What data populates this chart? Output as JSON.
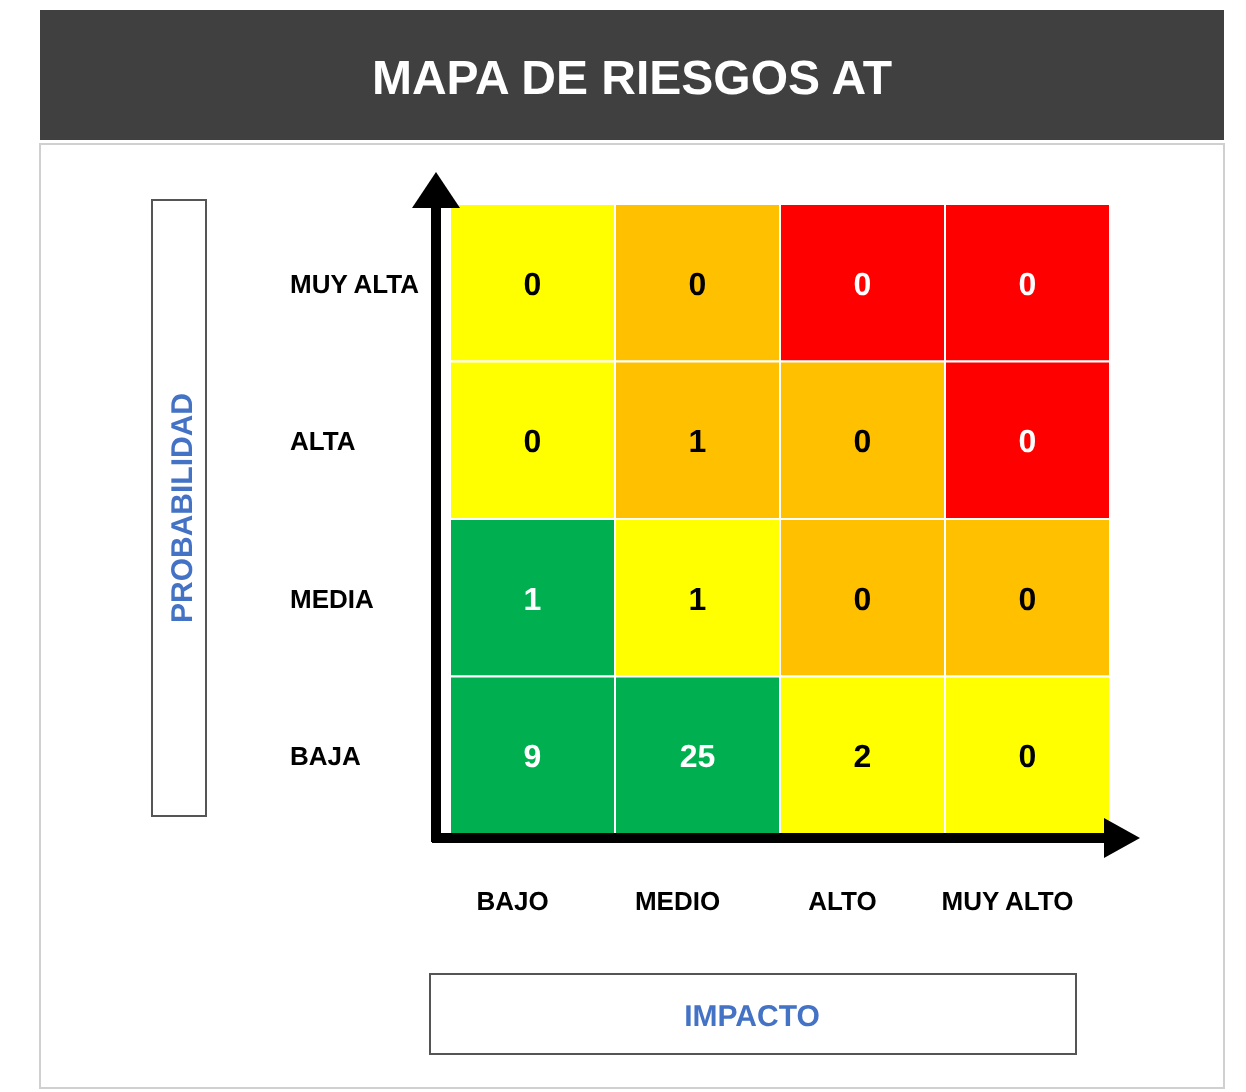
{
  "chart_data": {
    "type": "heatmap",
    "title": "MAPA DE RIESGOS AT",
    "xlabel": "IMPACTO",
    "ylabel": "PROBABILIDAD",
    "categories": [
      "BAJO",
      "MEDIO",
      "ALTO",
      "MUY ALTO"
    ],
    "y_categories": [
      "MUY ALTA",
      "ALTA",
      "MEDIA",
      "BAJA"
    ],
    "data_labels": true,
    "cells": [
      [
        0,
        0,
        0,
        0
      ],
      [
        0,
        1,
        0,
        0
      ],
      [
        1,
        1,
        0,
        0
      ],
      [
        9,
        25,
        2,
        0
      ]
    ],
    "colors": [
      [
        "#ffff00",
        "#ffc000",
        "#ff0000",
        "#ff0000"
      ],
      [
        "#ffff00",
        "#ffc000",
        "#ffc000",
        "#ff0000"
      ],
      [
        "#00b050",
        "#ffff00",
        "#ffc000",
        "#ffc000"
      ],
      [
        "#00b050",
        "#00b050",
        "#ffff00",
        "#ffff00"
      ]
    ]
  }
}
